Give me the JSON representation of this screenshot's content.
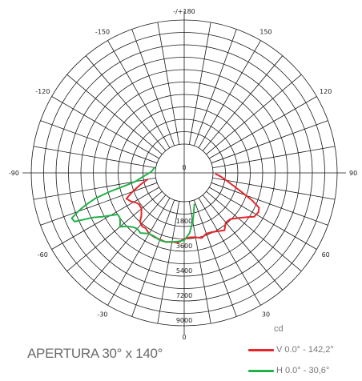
{
  "chart_data": {
    "type": "polar",
    "unit": "cd",
    "angle_labels": [
      "0",
      "30",
      "60",
      "90",
      "120",
      "150",
      "-/+180",
      "-150",
      "-120",
      "-90",
      "-60",
      "-30"
    ],
    "ring_labels": [
      "1800",
      "3600",
      "5400",
      "7200",
      "9000"
    ],
    "rmax": 9000,
    "caption": "APERTURA 30° x 140°",
    "series": [
      {
        "name": "V 0.0° - 142,2°",
        "color": "#e8262a",
        "points": [
          [
            -80,
            600
          ],
          [
            -75,
            1200
          ],
          [
            -70,
            1900
          ],
          [
            -66,
            2500
          ],
          [
            -62,
            2300
          ],
          [
            -58,
            2000
          ],
          [
            -55,
            1900
          ],
          [
            -50,
            1950
          ],
          [
            -45,
            2300
          ],
          [
            -42,
            2700
          ],
          [
            -38,
            2850
          ],
          [
            -35,
            2800
          ],
          [
            -30,
            3000
          ],
          [
            -25,
            3050
          ],
          [
            -20,
            3050
          ],
          [
            -15,
            3100
          ],
          [
            -10,
            3000
          ],
          [
            -5,
            3000
          ],
          [
            0,
            2700
          ],
          [
            5,
            2600
          ],
          [
            10,
            2650
          ],
          [
            15,
            2800
          ],
          [
            20,
            2600
          ],
          [
            25,
            2650
          ],
          [
            30,
            2800
          ],
          [
            35,
            3000
          ],
          [
            40,
            2600
          ],
          [
            45,
            2650
          ],
          [
            50,
            3000
          ],
          [
            55,
            3500
          ],
          [
            58,
            3900
          ],
          [
            62,
            4000
          ],
          [
            65,
            3900
          ],
          [
            68,
            3200
          ],
          [
            72,
            2200
          ],
          [
            76,
            1500
          ],
          [
            80,
            1000
          ],
          [
            84,
            600
          ],
          [
            88,
            200
          ]
        ]
      },
      {
        "name": "H 0.0° - 30,6°",
        "color": "#25b04a",
        "points": [
          [
            -100,
            100
          ],
          [
            -92,
            300
          ],
          [
            -88,
            600
          ],
          [
            -84,
            1000
          ],
          [
            -80,
            1500
          ],
          [
            -78,
            2200
          ],
          [
            -76,
            3400
          ],
          [
            -74,
            4600
          ],
          [
            -72,
            5400
          ],
          [
            -70,
            6100
          ],
          [
            -68,
            6700
          ],
          [
            -66,
            6600
          ],
          [
            -64,
            5300
          ],
          [
            -62,
            4700
          ],
          [
            -60,
            4100
          ],
          [
            -58,
            3600
          ],
          [
            -55,
            3600
          ],
          [
            -52,
            3800
          ],
          [
            -50,
            4000
          ],
          [
            -47,
            3600
          ],
          [
            -43,
            3300
          ],
          [
            -40,
            3200
          ],
          [
            -36,
            3300
          ],
          [
            -30,
            3000
          ],
          [
            -25,
            3000
          ],
          [
            -20,
            3100
          ],
          [
            -15,
            3100
          ],
          [
            -10,
            3000
          ],
          [
            -5,
            2900
          ],
          [
            0,
            2800
          ],
          [
            5,
            2300
          ],
          [
            10,
            1500
          ],
          [
            14,
            800
          ],
          [
            18,
            300
          ]
        ]
      }
    ]
  }
}
